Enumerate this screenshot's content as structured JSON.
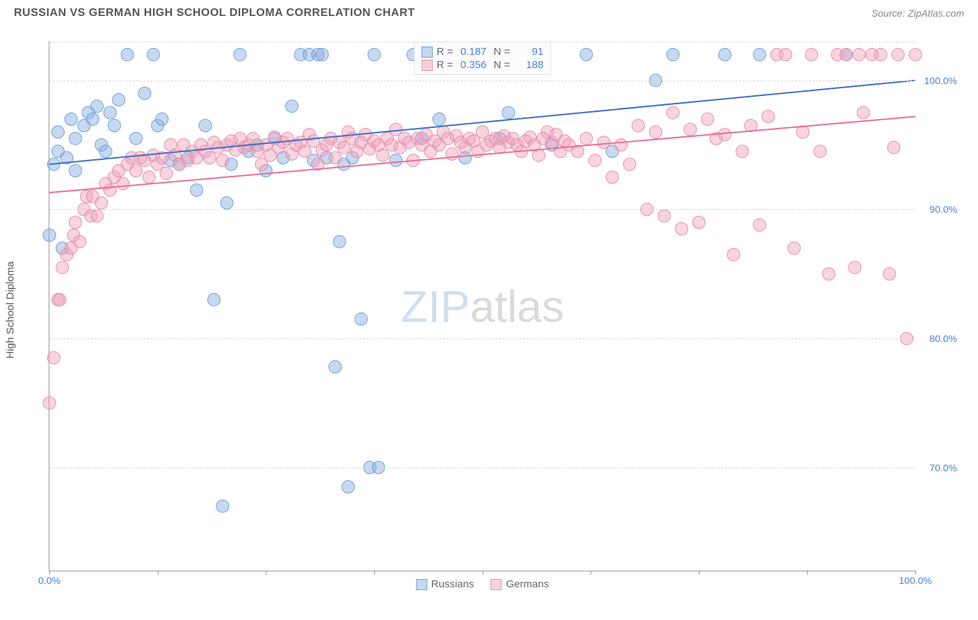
{
  "title": "RUSSIAN VS GERMAN HIGH SCHOOL DIPLOMA CORRELATION CHART",
  "source": "Source: ZipAtlas.com",
  "y_axis_label": "High School Diploma",
  "watermark": {
    "part1": "ZIP",
    "part2": "atlas"
  },
  "chart": {
    "type": "scatter",
    "xlim": [
      0,
      100
    ],
    "ylim": [
      62,
      103
    ],
    "y_ticks": [
      70,
      80,
      90,
      100
    ],
    "y_tick_labels": [
      "70.0%",
      "80.0%",
      "90.0%",
      "100.0%"
    ],
    "x_ticks": [
      0,
      12.5,
      25,
      37.5,
      50,
      62.5,
      75,
      87.5,
      100
    ],
    "x_end_labels": {
      "start": "0.0%",
      "end": "100.0%"
    },
    "background_color": "#ffffff",
    "grid_color": "#d5d5d5",
    "axis_color": "#999999",
    "tick_label_color": "#4a7fd6",
    "series": [
      {
        "key": "russians",
        "label": "Russians",
        "fill": "rgba(130,170,225,0.45)",
        "stroke": "#6f9fd8",
        "line_color": "#3b6fc4",
        "line_width": 2,
        "marker_radius": 9,
        "R": "0.187",
        "N": "91",
        "trend": {
          "x1": 0,
          "y1": 93.5,
          "x2": 100,
          "y2": 100
        },
        "points": [
          [
            0,
            88
          ],
          [
            0.5,
            93.5
          ],
          [
            1,
            94.5
          ],
          [
            1,
            96
          ],
          [
            1.5,
            87
          ],
          [
            2,
            94
          ],
          [
            2.5,
            97
          ],
          [
            3,
            95.5
          ],
          [
            3,
            93
          ],
          [
            4,
            96.5
          ],
          [
            4.5,
            97.5
          ],
          [
            5,
            97
          ],
          [
            5.5,
            98
          ],
          [
            6,
            95
          ],
          [
            6.5,
            94.5
          ],
          [
            7,
            97.5
          ],
          [
            7.5,
            96.5
          ],
          [
            8,
            98.5
          ],
          [
            9,
            102
          ],
          [
            10,
            95.5
          ],
          [
            11,
            99
          ],
          [
            12,
            102
          ],
          [
            12.5,
            96.5
          ],
          [
            13,
            97
          ],
          [
            14,
            93.8
          ],
          [
            15,
            93.5
          ],
          [
            16,
            94
          ],
          [
            17,
            91.5
          ],
          [
            18,
            96.5
          ],
          [
            19,
            83
          ],
          [
            20,
            67
          ],
          [
            20.5,
            90.5
          ],
          [
            21,
            93.5
          ],
          [
            22,
            102
          ],
          [
            23,
            94.5
          ],
          [
            24,
            95
          ],
          [
            25,
            93
          ],
          [
            26,
            95.5
          ],
          [
            27,
            94
          ],
          [
            28,
            98
          ],
          [
            29,
            102
          ],
          [
            30,
            102
          ],
          [
            30.5,
            93.8
          ],
          [
            31,
            102
          ],
          [
            31.5,
            102
          ],
          [
            32,
            94
          ],
          [
            33,
            77.8
          ],
          [
            33.5,
            87.5
          ],
          [
            34,
            93.5
          ],
          [
            34.5,
            68.5
          ],
          [
            35,
            94
          ],
          [
            36,
            81.5
          ],
          [
            37,
            70
          ],
          [
            37.5,
            102
          ],
          [
            38,
            70
          ],
          [
            40,
            93.8
          ],
          [
            42,
            102
          ],
          [
            43,
            95.5
          ],
          [
            45,
            97
          ],
          [
            47,
            102
          ],
          [
            48,
            94
          ],
          [
            50,
            102
          ],
          [
            52,
            95.5
          ],
          [
            53,
            97.5
          ],
          [
            55,
            102
          ],
          [
            56.5,
            102
          ],
          [
            58,
            95
          ],
          [
            62,
            102
          ],
          [
            65,
            94.5
          ],
          [
            70,
            100
          ],
          [
            72,
            102
          ],
          [
            78,
            102
          ],
          [
            82,
            102
          ],
          [
            92,
            102
          ]
        ]
      },
      {
        "key": "germans",
        "label": "Germans",
        "fill": "rgba(240,160,185,0.45)",
        "stroke": "#e48fab",
        "line_color": "#e86f95",
        "line_width": 2,
        "marker_radius": 9,
        "R": "0.356",
        "N": "188",
        "trend": {
          "x1": 0,
          "y1": 91.3,
          "x2": 100,
          "y2": 97.2
        },
        "points": [
          [
            0,
            75
          ],
          [
            0.5,
            78.5
          ],
          [
            1,
            83
          ],
          [
            1.2,
            83
          ],
          [
            1.5,
            85.5
          ],
          [
            2,
            86.5
          ],
          [
            2.5,
            87
          ],
          [
            2.8,
            88
          ],
          [
            3,
            89
          ],
          [
            3.5,
            87.5
          ],
          [
            4,
            90
          ],
          [
            4.3,
            91
          ],
          [
            4.8,
            89.5
          ],
          [
            5,
            91
          ],
          [
            5.5,
            89.5
          ],
          [
            6,
            90.5
          ],
          [
            6.5,
            92
          ],
          [
            7,
            91.5
          ],
          [
            7.5,
            92.5
          ],
          [
            8,
            93
          ],
          [
            8.5,
            92
          ],
          [
            9,
            93.5
          ],
          [
            9.5,
            94
          ],
          [
            10,
            93
          ],
          [
            10.5,
            94
          ],
          [
            11,
            93.8
          ],
          [
            11.5,
            92.5
          ],
          [
            12,
            94.2
          ],
          [
            12.5,
            93.5
          ],
          [
            13,
            94
          ],
          [
            13.5,
            92.8
          ],
          [
            14,
            95
          ],
          [
            14.5,
            94.2
          ],
          [
            15,
            93.5
          ],
          [
            15.5,
            95
          ],
          [
            16,
            93.8
          ],
          [
            16.5,
            94.5
          ],
          [
            17,
            94
          ],
          [
            17.5,
            95
          ],
          [
            18,
            94.5
          ],
          [
            18.5,
            94
          ],
          [
            19,
            95.2
          ],
          [
            19.5,
            94.8
          ],
          [
            20,
            93.8
          ],
          [
            20.5,
            95
          ],
          [
            21,
            95.3
          ],
          [
            21.5,
            94.6
          ],
          [
            22,
            95.5
          ],
          [
            22.5,
            94.8
          ],
          [
            23,
            95
          ],
          [
            23.5,
            95.5
          ],
          [
            24,
            94.5
          ],
          [
            24.5,
            93.5
          ],
          [
            25,
            95
          ],
          [
            25.5,
            94.2
          ],
          [
            26,
            95.6
          ],
          [
            26.5,
            94.8
          ],
          [
            27,
            95.2
          ],
          [
            27.5,
            95.5
          ],
          [
            28,
            94.3
          ],
          [
            28.5,
            95
          ],
          [
            29,
            95.2
          ],
          [
            29.5,
            94.5
          ],
          [
            30,
            95.8
          ],
          [
            30.5,
            95.3
          ],
          [
            31,
            93.5
          ],
          [
            31.5,
            94.6
          ],
          [
            32,
            95
          ],
          [
            32.5,
            95.5
          ],
          [
            33,
            94
          ],
          [
            33.5,
            95.2
          ],
          [
            34,
            94.8
          ],
          [
            34.5,
            96
          ],
          [
            35,
            95.5
          ],
          [
            35.5,
            94.5
          ],
          [
            36,
            95.2
          ],
          [
            36.5,
            95.8
          ],
          [
            37,
            94.7
          ],
          [
            37.5,
            95.3
          ],
          [
            38,
            95
          ],
          [
            38.5,
            94.2
          ],
          [
            39,
            95.5
          ],
          [
            39.5,
            95
          ],
          [
            40,
            96.2
          ],
          [
            40.5,
            94.8
          ],
          [
            41,
            95.5
          ],
          [
            41.5,
            95.2
          ],
          [
            42,
            93.8
          ],
          [
            42.5,
            95.5
          ],
          [
            43,
            95
          ],
          [
            43.5,
            95.8
          ],
          [
            44,
            94.5
          ],
          [
            44.5,
            95.3
          ],
          [
            45,
            95
          ],
          [
            45.5,
            96
          ],
          [
            46,
            95.5
          ],
          [
            46.5,
            94.3
          ],
          [
            47,
            95.7
          ],
          [
            47.5,
            95.2
          ],
          [
            48,
            94.8
          ],
          [
            48.5,
            95.5
          ],
          [
            49,
            95.3
          ],
          [
            49.5,
            94.5
          ],
          [
            50,
            96
          ],
          [
            50.5,
            95
          ],
          [
            51,
            95.3
          ],
          [
            51.5,
            95.5
          ],
          [
            52,
            94.8
          ],
          [
            52.5,
            95.7
          ],
          [
            53,
            95.2
          ],
          [
            53.5,
            95.5
          ],
          [
            54,
            95
          ],
          [
            54.5,
            94.5
          ],
          [
            55,
            95.3
          ],
          [
            55.5,
            95.6
          ],
          [
            56,
            95
          ],
          [
            56.5,
            94.2
          ],
          [
            57,
            95.5
          ],
          [
            57.5,
            96
          ],
          [
            58,
            95.2
          ],
          [
            58.5,
            95.8
          ],
          [
            59,
            94.5
          ],
          [
            59.5,
            95.3
          ],
          [
            60,
            95
          ],
          [
            61,
            94.5
          ],
          [
            62,
            95.5
          ],
          [
            63,
            93.8
          ],
          [
            64,
            95.2
          ],
          [
            65,
            92.5
          ],
          [
            66,
            95
          ],
          [
            67,
            93.5
          ],
          [
            68,
            96.5
          ],
          [
            69,
            90
          ],
          [
            70,
            96
          ],
          [
            71,
            89.5
          ],
          [
            72,
            97.5
          ],
          [
            73,
            88.5
          ],
          [
            74,
            96.2
          ],
          [
            75,
            89
          ],
          [
            76,
            97
          ],
          [
            77,
            95.5
          ],
          [
            78,
            95.8
          ],
          [
            79,
            86.5
          ],
          [
            80,
            94.5
          ],
          [
            81,
            96.5
          ],
          [
            82,
            88.8
          ],
          [
            83,
            97.2
          ],
          [
            84,
            102
          ],
          [
            85,
            102
          ],
          [
            86,
            87
          ],
          [
            87,
            96
          ],
          [
            88,
            102
          ],
          [
            89,
            94.5
          ],
          [
            90,
            85
          ],
          [
            91,
            102
          ],
          [
            92,
            102
          ],
          [
            93,
            85.5
          ],
          [
            93.5,
            102
          ],
          [
            94,
            97.5
          ],
          [
            95,
            102
          ],
          [
            96,
            102
          ],
          [
            97,
            85
          ],
          [
            97.5,
            94.8
          ],
          [
            98,
            102
          ],
          [
            99,
            80
          ],
          [
            100,
            102
          ]
        ]
      }
    ]
  },
  "legend_bottom": [
    {
      "key": "russians",
      "label": "Russians"
    },
    {
      "key": "germans",
      "label": "Germans"
    }
  ]
}
